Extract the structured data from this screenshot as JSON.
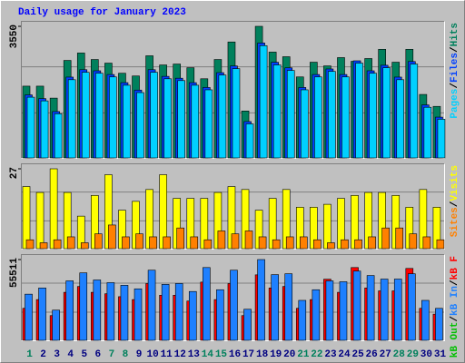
{
  "chart_data": [
    {
      "type": "bar",
      "title": "Daily usage for January 2023",
      "ylim": [
        0,
        3550
      ],
      "yticks": [
        3550
      ],
      "legend_separator": "/",
      "series": [
        {
          "name": "Hits",
          "color": "#00805c",
          "values": [
            1936,
            1936,
            1613,
            2630,
            2830,
            2655,
            2557,
            2284,
            2210,
            2755,
            2508,
            2532,
            2433,
            2135,
            2655,
            3128,
            1266,
            3550,
            2855,
            2730,
            2185,
            2582,
            2483,
            2706,
            2606,
            2681,
            2930,
            2582,
            2930,
            1712,
            1390
          ]
        },
        {
          "name": "Files",
          "color": "#0040ff",
          "values": [
            1700,
            1600,
            1250,
            2180,
            2380,
            2350,
            2250,
            2030,
            1830,
            2380,
            2200,
            2150,
            2030,
            1900,
            2300,
            2480,
            980,
            3100,
            2580,
            2430,
            1900,
            2250,
            2400,
            2250,
            2620,
            2350,
            2500,
            2180,
            2600,
            1430,
            1100
          ]
        },
        {
          "name": "Pages",
          "color": "#00d0ff",
          "values": [
            1638,
            1539,
            1191,
            2110,
            2309,
            2284,
            2185,
            1961,
            1762,
            2309,
            2135,
            2086,
            1961,
            1837,
            2235,
            2408,
            918,
            3029,
            2508,
            2359,
            1837,
            2185,
            2334,
            2185,
            2557,
            2284,
            2433,
            2110,
            2532,
            1366,
            1043
          ]
        }
      ]
    },
    {
      "type": "bar",
      "ylim": [
        0,
        27
      ],
      "yticks": [
        27
      ],
      "legend_separator": "/",
      "series": [
        {
          "name": "Visits",
          "color": "#ffff00",
          "values": [
            21,
            19,
            27,
            19,
            11,
            18,
            25,
            13,
            16,
            20,
            25,
            17,
            17,
            17,
            19,
            21,
            20,
            13,
            17,
            20,
            14,
            14,
            15,
            17,
            18,
            19,
            19,
            18,
            14,
            20,
            14
          ]
        },
        {
          "name": "Sites",
          "color": "#ff8000",
          "values": [
            3,
            2,
            3,
            4,
            2,
            5,
            8,
            4,
            5,
            4,
            4,
            7,
            4,
            3,
            6,
            5,
            6,
            4,
            3,
            4,
            4,
            3,
            2,
            3,
            3,
            4,
            7,
            7,
            5,
            4,
            3
          ]
        }
      ]
    },
    {
      "type": "bar",
      "ylim": [
        0,
        55511
      ],
      "yticks": [
        55511
      ],
      "legend_separator": "/",
      "categories": [
        "1",
        "2",
        "3",
        "4",
        "5",
        "6",
        "7",
        "8",
        "9",
        "10",
        "11",
        "12",
        "13",
        "14",
        "15",
        "16",
        "17",
        "18",
        "19",
        "20",
        "21",
        "22",
        "23",
        "24",
        "25",
        "26",
        "27",
        "28",
        "29",
        "30",
        "31"
      ],
      "category_colors": [
        "#00805c",
        "#000080",
        "#000080",
        "#000080",
        "#000080",
        "#000080",
        "#00805c",
        "#00805c",
        "#000080",
        "#000080",
        "#000080",
        "#000080",
        "#000080",
        "#00805c",
        "#00805c",
        "#000080",
        "#000080",
        "#000080",
        "#000080",
        "#000080",
        "#00805c",
        "#00805c",
        "#000080",
        "#000080",
        "#000080",
        "#000080",
        "#000080",
        "#00805c",
        "#00805c",
        "#000080",
        "#000080"
      ],
      "series": [
        {
          "name": "kB F",
          "color": "#ff0000",
          "values": [
            22000,
            28000,
            17000,
            33000,
            37000,
            33000,
            32000,
            30000,
            28000,
            39000,
            31000,
            31000,
            27000,
            40000,
            28000,
            39000,
            17000,
            45000,
            36000,
            37000,
            22000,
            28000,
            42000,
            33000,
            50020,
            36000,
            34000,
            34000,
            49410,
            22000,
            18000
          ]
        },
        {
          "name": "kB In",
          "color": "#1e80ff",
          "values": [
            31720,
            35990,
            20740,
            40870,
            46360,
            41480,
            39650,
            37820,
            35380,
            48190,
            38430,
            39040,
            33550,
            50020,
            34770,
            48190,
            21350,
            55511,
            45140,
            45750,
            27450,
            34770,
            40870,
            40260,
            47580,
            44530,
            42090,
            42090,
            45750,
            27450,
            21960
          ]
        },
        {
          "name": "kB Out",
          "color": "#00c000",
          "values": [
            0,
            0,
            0,
            0,
            0,
            0,
            0,
            0,
            0,
            0,
            0,
            0,
            0,
            0,
            0,
            0,
            0,
            0,
            0,
            0,
            0,
            0,
            0,
            0,
            0,
            0,
            0,
            0,
            0,
            0,
            0
          ]
        }
      ]
    }
  ]
}
